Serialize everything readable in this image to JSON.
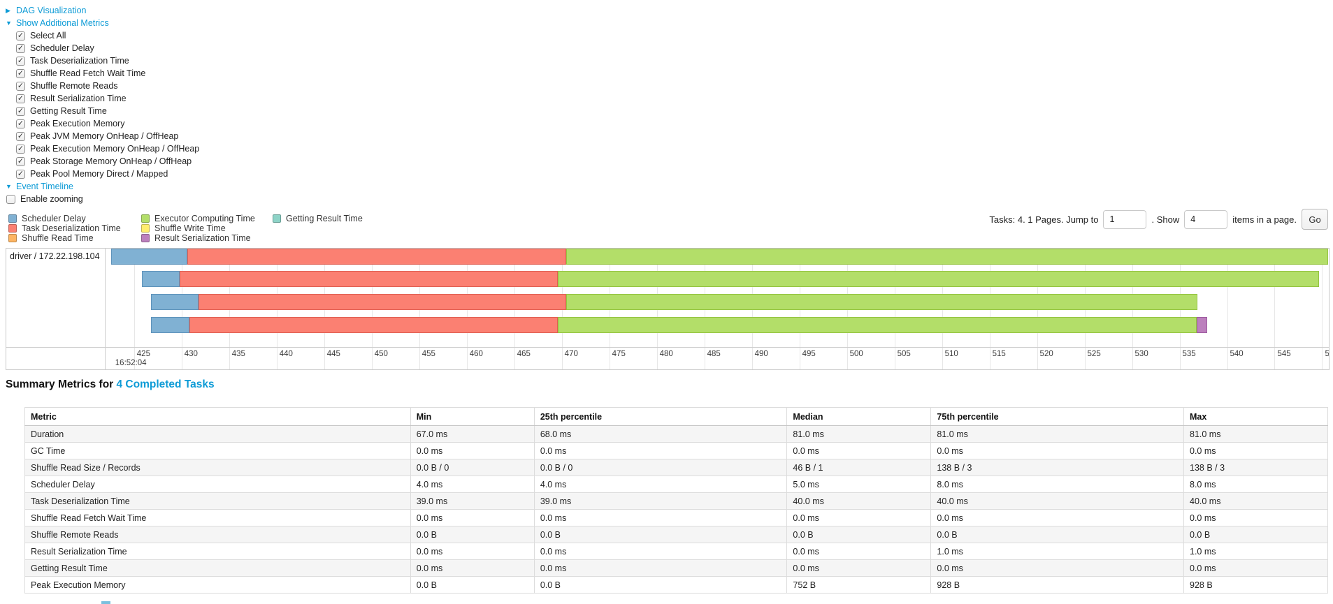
{
  "ui_colors": {
    "link": "#0d9bd6",
    "text": "#262626",
    "grid": "#e7e7e7",
    "border": "#c9c9c9"
  },
  "controls": {
    "dag": {
      "arrow": "▶",
      "label": "DAG Visualization"
    },
    "metrics_toggle": {
      "arrow": "▼",
      "label": "Show Additional Metrics"
    },
    "checkboxes": [
      {
        "label": "Select All",
        "checked": true
      },
      {
        "label": "Scheduler Delay",
        "checked": true
      },
      {
        "label": "Task Deserialization Time",
        "checked": true
      },
      {
        "label": "Shuffle Read Fetch Wait Time",
        "checked": true
      },
      {
        "label": "Shuffle Remote Reads",
        "checked": true
      },
      {
        "label": "Result Serialization Time",
        "checked": true
      },
      {
        "label": "Getting Result Time",
        "checked": true
      },
      {
        "label": "Peak Execution Memory",
        "checked": true
      },
      {
        "label": "Peak JVM Memory OnHeap / OffHeap",
        "checked": true
      },
      {
        "label": "Peak Execution Memory OnHeap / OffHeap",
        "checked": true
      },
      {
        "label": "Peak Storage Memory OnHeap / OffHeap",
        "checked": true
      },
      {
        "label": "Peak Pool Memory Direct / Mapped",
        "checked": true
      }
    ],
    "event_timeline": {
      "arrow": "▼",
      "label": "Event Timeline"
    },
    "enable_zooming": {
      "label": "Enable zooming",
      "checked": false
    }
  },
  "segment_colors": {
    "scheduler_delay": {
      "fill": "#80B1D3",
      "border": "#5E93BB"
    },
    "task_deserialization": {
      "fill": "#FB8072",
      "border": "#E05F52"
    },
    "shuffle_read": {
      "fill": "#FDB462",
      "border": "#E09540"
    },
    "executor_computing": {
      "fill": "#B3DE69",
      "border": "#94C440"
    },
    "shuffle_write": {
      "fill": "#FFED6F",
      "border": "#E2CC4A"
    },
    "result_serialization": {
      "fill": "#BC80BD",
      "border": "#9E5BA0"
    },
    "getting_result": {
      "fill": "#8DD3C7",
      "border": "#68B5A8"
    }
  },
  "legend": {
    "columns": [
      [
        {
          "key": "scheduler_delay",
          "label": "Scheduler Delay"
        },
        {
          "key": "task_deserialization",
          "label": "Task Deserialization Time"
        },
        {
          "key": "shuffle_read",
          "label": "Shuffle Read Time"
        }
      ],
      [
        {
          "key": "executor_computing",
          "label": "Executor Computing Time"
        },
        {
          "key": "shuffle_write",
          "label": "Shuffle Write Time"
        },
        {
          "key": "result_serialization",
          "label": "Result Serialization Time"
        }
      ],
      [
        {
          "key": "getting_result",
          "label": "Getting Result Time"
        }
      ]
    ]
  },
  "pagination": {
    "prefix": "Tasks: 4. 1 Pages. Jump to",
    "page_value": "1",
    "mid": ". Show",
    "size_value": "4",
    "suffix": "items in a page.",
    "go_label": "Go"
  },
  "chart_data": {
    "type": "gantt-timeline",
    "row_label": "driver / 172.22.198.104",
    "axis": {
      "min": 422.0,
      "max": 550.7,
      "tick_start": 425,
      "tick_end": 550,
      "tick_step": 5,
      "major_label": "16:52:04",
      "major_at": 425,
      "unit": "ms within second 16:52:04"
    },
    "tasks": [
      {
        "segments": [
          {
            "key": "scheduler_delay",
            "start": 422.6,
            "end": 430.6
          },
          {
            "key": "task_deserialization",
            "start": 430.6,
            "end": 470.5
          },
          {
            "key": "executor_computing",
            "start": 470.5,
            "end": 550.6
          }
        ]
      },
      {
        "segments": [
          {
            "key": "scheduler_delay",
            "start": 425.8,
            "end": 429.8
          },
          {
            "key": "task_deserialization",
            "start": 429.8,
            "end": 469.6
          },
          {
            "key": "executor_computing",
            "start": 469.6,
            "end": 549.7
          }
        ]
      },
      {
        "segments": [
          {
            "key": "scheduler_delay",
            "start": 426.8,
            "end": 431.8
          },
          {
            "key": "task_deserialization",
            "start": 431.8,
            "end": 470.5
          },
          {
            "key": "executor_computing",
            "start": 470.5,
            "end": 536.9
          }
        ]
      },
      {
        "segments": [
          {
            "key": "scheduler_delay",
            "start": 426.8,
            "end": 430.8
          },
          {
            "key": "task_deserialization",
            "start": 430.8,
            "end": 469.6
          },
          {
            "key": "executor_computing",
            "start": 469.6,
            "end": 536.8
          },
          {
            "key": "result_serialization",
            "start": 536.8,
            "end": 537.9
          }
        ]
      }
    ]
  },
  "summary": {
    "title_prefix": "Summary Metrics for ",
    "title_link": "4 Completed Tasks",
    "table": {
      "headers": [
        "Metric",
        "Min",
        "25th percentile",
        "Median",
        "75th percentile",
        "Max"
      ],
      "rows": [
        {
          "metric": "Duration",
          "values": [
            "67.0 ms",
            "68.0 ms",
            "81.0 ms",
            "81.0 ms",
            "81.0 ms"
          ]
        },
        {
          "metric": "GC Time",
          "values": [
            "0.0 ms",
            "0.0 ms",
            "0.0 ms",
            "0.0 ms",
            "0.0 ms"
          ]
        },
        {
          "metric": "Shuffle Read Size / Records",
          "values": [
            "0.0 B / 0",
            "0.0 B / 0",
            "46 B / 1",
            "138 B / 3",
            "138 B / 3"
          ]
        },
        {
          "metric": "Scheduler Delay",
          "values": [
            "4.0 ms",
            "4.0 ms",
            "5.0 ms",
            "8.0 ms",
            "8.0 ms"
          ]
        },
        {
          "metric": "Task Deserialization Time",
          "values": [
            "39.0 ms",
            "39.0 ms",
            "40.0 ms",
            "40.0 ms",
            "40.0 ms"
          ]
        },
        {
          "metric": "Shuffle Read Fetch Wait Time",
          "values": [
            "0.0 ms",
            "0.0 ms",
            "0.0 ms",
            "0.0 ms",
            "0.0 ms"
          ]
        },
        {
          "metric": "Shuffle Remote Reads",
          "values": [
            "0.0 B",
            "0.0 B",
            "0.0 B",
            "0.0 B",
            "0.0 B"
          ]
        },
        {
          "metric": "Result Serialization Time",
          "values": [
            "0.0 ms",
            "0.0 ms",
            "0.0 ms",
            "1.0 ms",
            "1.0 ms"
          ]
        },
        {
          "metric": "Getting Result Time",
          "values": [
            "0.0 ms",
            "0.0 ms",
            "0.0 ms",
            "0.0 ms",
            "0.0 ms"
          ]
        },
        {
          "metric": "Peak Execution Memory",
          "values": [
            "0.0 B",
            "0.0 B",
            "752 B",
            "928 B",
            "928 B"
          ]
        }
      ]
    }
  }
}
